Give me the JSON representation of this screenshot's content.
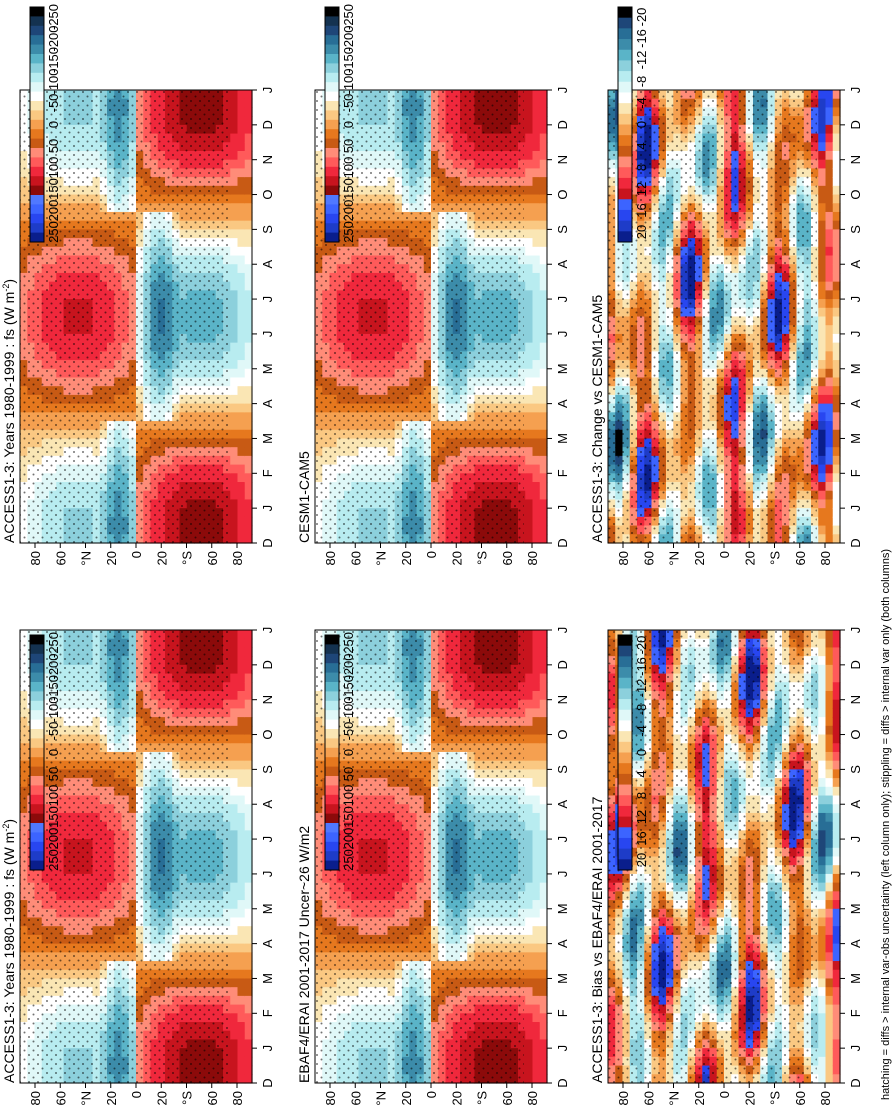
{
  "footer": "hatching = diffs > internal var-obs uncertainty (left column only); stippling = diffs > internal var only (both columns)",
  "palette_full": [
    "#0a1e8c",
    "#1e3cc8",
    "#2846f0",
    "#3c64ff",
    "#5078ff",
    "#8c0a0a",
    "#c8141e",
    "#f0283c",
    "#ff5a5a",
    "#ff8c78",
    "#c85a14",
    "#e6781e",
    "#f5a050",
    "#fac882",
    "#fae6b4",
    "#ffffff",
    "#e0f8f8",
    "#b8ecf0",
    "#8cd0dc",
    "#5ab4c8",
    "#3c8caa",
    "#286e96",
    "#1e4678",
    "#143250",
    "#000000"
  ],
  "palette_diff": [
    "#0a1e8c",
    "#1e3cc8",
    "#2846f0",
    "#3c64ff",
    "#c8141e",
    "#f0283c",
    "#ff5a5a",
    "#ff8c78",
    "#c85a14",
    "#e6781e",
    "#f5a050",
    "#fac882",
    "#fae6b4",
    "#ffffff",
    "#e0f8f8",
    "#b8ecf0",
    "#8cd0dc",
    "#5ab4c8",
    "#3c8caa",
    "#286e96",
    "#1e4678",
    "#000000"
  ],
  "chart_data": [
    {
      "type": "heatmap",
      "title": "ACCESS1-3: Years 1980-1999 : fs (W m",
      "title_sup": "-2",
      "title_end": ")",
      "x_ticks": [
        "D",
        "J",
        "F",
        "M",
        "A",
        "M",
        "J",
        "J",
        "A",
        "S",
        "O",
        "N",
        "D",
        "J"
      ],
      "y_ticks": [
        "80",
        "60",
        "°N",
        "20",
        "0",
        "20",
        "°S",
        "60",
        "80"
      ],
      "colorbar_ticks": [
        "250",
        "200",
        "150",
        "100",
        "50",
        "0",
        "-50",
        "-100",
        "-150",
        "-200",
        "-250"
      ],
      "field": "full",
      "stipple": true,
      "hatch": true
    },
    {
      "type": "heatmap",
      "title": "ACCESS1-3: Years 1980-1999 : fs (W m",
      "title_sup": "-2",
      "title_end": ")",
      "x_ticks": [
        "D",
        "J",
        "F",
        "M",
        "A",
        "M",
        "J",
        "J",
        "A",
        "S",
        "O",
        "N",
        "D",
        "J"
      ],
      "y_ticks": [
        "80",
        "60",
        "°N",
        "20",
        "0",
        "20",
        "°S",
        "60",
        "80"
      ],
      "colorbar_ticks": [
        "250",
        "200",
        "150",
        "100",
        "50",
        "0",
        "-50",
        "-100",
        "-150",
        "-200",
        "-250"
      ],
      "field": "full",
      "stipple": true,
      "hatch": false
    },
    {
      "type": "heatmap",
      "title": "EBAF4/ERAI 2001-2017 Uncer~26 W/m2",
      "x_ticks": [
        "D",
        "J",
        "F",
        "M",
        "A",
        "M",
        "J",
        "J",
        "A",
        "S",
        "O",
        "N",
        "D",
        "J"
      ],
      "y_ticks": [
        "80",
        "60",
        "°N",
        "20",
        "0",
        "20",
        "°S",
        "60",
        "80"
      ],
      "colorbar_ticks": [
        "250",
        "200",
        "150",
        "100",
        "50",
        "0",
        "-50",
        "-100",
        "-150",
        "-200",
        "-250"
      ],
      "field": "full",
      "stipple": true,
      "hatch": true
    },
    {
      "type": "heatmap",
      "title": "CESM1-CAM5",
      "x_ticks": [
        "D",
        "J",
        "F",
        "M",
        "A",
        "M",
        "J",
        "J",
        "A",
        "S",
        "O",
        "N",
        "D",
        "J"
      ],
      "y_ticks": [
        "80",
        "60",
        "°N",
        "20",
        "0",
        "20",
        "°S",
        "60",
        "80"
      ],
      "colorbar_ticks": [
        "250",
        "200",
        "150",
        "100",
        "50",
        "0",
        "-50",
        "-100",
        "-150",
        "-200",
        "-250"
      ],
      "field": "full",
      "stipple": true,
      "hatch": false
    },
    {
      "type": "heatmap",
      "title": "ACCESS1-3: Bias vs EBAF4/ERAI 2001-2017",
      "x_ticks": [
        "D",
        "J",
        "F",
        "M",
        "A",
        "M",
        "J",
        "J",
        "A",
        "S",
        "O",
        "N",
        "D",
        "J"
      ],
      "y_ticks": [
        "80",
        "60",
        "°N",
        "20",
        "0",
        "20",
        "°S",
        "60",
        "80"
      ],
      "colorbar_ticks": [
        "20",
        "16",
        "12",
        "8",
        "4",
        "0",
        "-4",
        "-8",
        "-12",
        "-16",
        "-20"
      ],
      "field": "diff",
      "stipple": true,
      "hatch": false
    },
    {
      "type": "heatmap",
      "title": "ACCESS1-3: Change vs CESM1-CAM5",
      "x_ticks": [
        "D",
        "J",
        "F",
        "M",
        "A",
        "M",
        "J",
        "J",
        "A",
        "S",
        "O",
        "N",
        "D",
        "J"
      ],
      "y_ticks": [
        "80",
        "60",
        "°N",
        "20",
        "0",
        "20",
        "°S",
        "60",
        "80"
      ],
      "colorbar_ticks": [
        "20",
        "16",
        "12",
        "8",
        "4",
        "0",
        "-4",
        "-8",
        "-12",
        "-16",
        "-20"
      ],
      "field": "diff",
      "stipple": true,
      "hatch": false
    }
  ]
}
